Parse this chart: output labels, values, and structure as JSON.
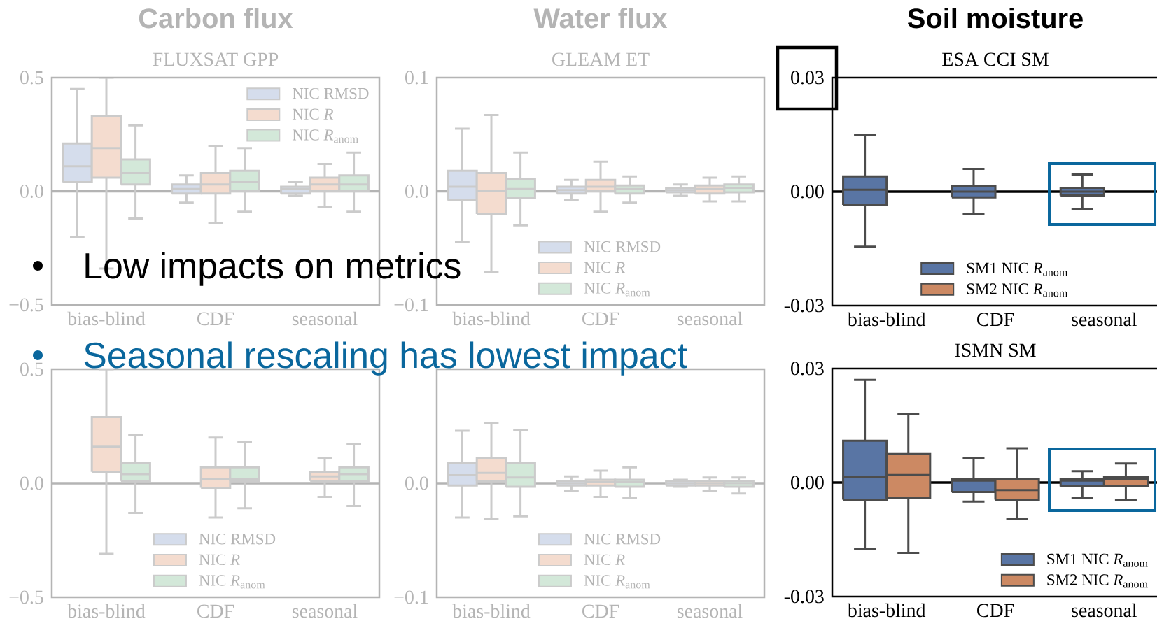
{
  "chart_data": [
    {
      "type": "box",
      "title": "Carbon flux",
      "subtitle": "FLUXSAT GPP",
      "categories": [
        "bias-blind",
        "CDF",
        "seasonal"
      ],
      "ylim": [
        -0.5,
        0.5
      ],
      "yticks": [
        {
          "value": -0.5,
          "label": "−0.5"
        },
        {
          "value": 0,
          "label": "0.0"
        },
        0.5
      ],
      "ref_lines": [
        {
          "axis": "y",
          "value": 0,
          "color": "#b4b4b4"
        }
      ],
      "legend": "top right",
      "series": [
        {
          "name": "NIC RMSD",
          "color": "#d5ddec",
          "boxes": [
            {
              "low": -0.2,
              "q1": 0.04,
              "median": 0.11,
              "q3": 0.21,
              "high": 0.45
            },
            {
              "low": -0.05,
              "q1": -0.01,
              "median": 0.01,
              "q3": 0.03,
              "high": 0.07
            },
            {
              "low": -0.02,
              "q1": -0.01,
              "median": 0.01,
              "q3": 0.02,
              "high": 0.04
            }
          ]
        },
        {
          "name": "NIC *R*",
          "color": "#f4dccf",
          "boxes": [
            {
              "low": -0.34,
              "q1": 0.06,
              "median": 0.19,
              "q3": 0.33,
              "high": 0.5
            },
            {
              "low": -0.14,
              "q1": -0.01,
              "median": 0.03,
              "q3": 0.08,
              "high": 0.2
            },
            {
              "low": -0.07,
              "q1": 0,
              "median": 0.03,
              "q3": 0.06,
              "high": 0.12
            }
          ]
        },
        {
          "name": "NIC *R*$_{anom}$",
          "color": "#d3e8d9",
          "boxes": [
            {
              "low": -0.12,
              "q1": 0.03,
              "median": 0.08,
              "q3": 0.14,
              "high": 0.29
            },
            {
              "low": -0.09,
              "q1": 0,
              "median": 0.04,
              "q3": 0.09,
              "high": 0.19
            },
            {
              "low": -0.09,
              "q1": 0,
              "median": 0.03,
              "q3": 0.07,
              "high": 0.17
            }
          ]
        }
      ]
    },
    {
      "type": "box",
      "title": "Water flux",
      "subtitle": "GLEAM ET",
      "categories": [
        "bias-blind",
        "CDF",
        "seasonal"
      ],
      "ylim": [
        -0.1,
        0.1
      ],
      "yticks": [
        {
          "value": -0.1,
          "label": "−0.1"
        },
        {
          "value": 0,
          "label": "0.0"
        },
        0.1
      ],
      "ref_lines": [
        {
          "axis": "y",
          "value": 0,
          "color": "#b4b4b4"
        }
      ],
      "legend": "bottom",
      "series": [
        {
          "name": "NIC RMSD",
          "color": "#d5ddec",
          "boxes": [
            {
              "low": -0.045,
              "q1": -0.008,
              "median": 0.004,
              "q3": 0.018,
              "high": 0.055
            },
            {
              "low": -0.008,
              "q1": -0.002,
              "median": 0.001,
              "q3": 0.004,
              "high": 0.01
            },
            {
              "low": -0.004,
              "q1": -0.001,
              "median": 0.001,
              "q3": 0.003,
              "high": 0.006
            }
          ]
        },
        {
          "name": "NIC *R*",
          "color": "#f4dccf",
          "boxes": [
            {
              "low": -0.071,
              "q1": -0.02,
              "median": 0,
              "q3": 0.016,
              "high": 0.067
            },
            {
              "low": -0.018,
              "q1": 0,
              "median": 0.004,
              "q3": 0.01,
              "high": 0.026
            },
            {
              "low": -0.009,
              "q1": -0.002,
              "median": 0.002,
              "q3": 0.005,
              "high": 0.012
            }
          ]
        },
        {
          "name": "NIC *R*$_{anom}$",
          "color": "#d3e8d9",
          "boxes": [
            {
              "low": -0.03,
              "q1": -0.006,
              "median": 0.002,
              "q3": 0.011,
              "high": 0.034
            },
            {
              "low": -0.01,
              "q1": -0.002,
              "median": 0.002,
              "q3": 0.005,
              "high": 0.013
            },
            {
              "low": -0.009,
              "q1": -0.001,
              "median": 0.003,
              "q3": 0.006,
              "high": 0.013
            }
          ]
        }
      ]
    },
    {
      "type": "box",
      "title": "Soil moisture",
      "subtitle": "ESA CCI SM",
      "categories": [
        "bias-blind",
        "CDF",
        "seasonal"
      ],
      "ylim": [
        -0.03,
        0.03
      ],
      "yticks": [
        -0.03,
        {
          "value": 0,
          "label": "0.00"
        },
        0.03
      ],
      "ref_lines": [
        {
          "axis": "y",
          "value": 0,
          "color": "#000000"
        }
      ],
      "legend": "bottom",
      "series": [
        {
          "name": "SM1 NIC *R*$_{anom}$",
          "color": "#5975a4",
          "boxes": [
            {
              "low": -0.0145,
              "q1": -0.0035,
              "median": 0.0005,
              "q3": 0.004,
              "high": 0.015
            },
            {
              "low": -0.006,
              "q1": -0.0015,
              "median": 0,
              "q3": 0.0015,
              "high": 0.006
            },
            {
              "low": -0.0045,
              "q1": -0.001,
              "median": 0,
              "q3": 0.001,
              "high": 0.0045
            }
          ]
        },
        {
          "name": "SM2 NIC *R*$_{anom}$",
          "color": "#cc8963",
          "boxes": [
            null,
            null,
            null
          ]
        }
      ]
    },
    {
      "type": "box",
      "categories": [
        "bias-blind",
        "CDF",
        "seasonal"
      ],
      "ylim": [
        -0.5,
        0.5
      ],
      "yticks": [
        {
          "value": -0.5,
          "label": "−0.5"
        },
        {
          "value": 0,
          "label": "0.0"
        },
        0.5
      ],
      "ref_lines": [
        {
          "axis": "y",
          "value": 0,
          "color": "#b4b4b4"
        }
      ],
      "legend": "bottom",
      "series": [
        {
          "name": "NIC RMSD",
          "color": "#d5ddec",
          "boxes": [
            null,
            null,
            null
          ]
        },
        {
          "name": "NIC *R*",
          "color": "#f4dccf",
          "boxes": [
            {
              "low": -0.31,
              "q1": 0.05,
              "median": 0.16,
              "q3": 0.29,
              "high": 0.5
            },
            {
              "low": -0.15,
              "q1": -0.02,
              "median": 0.02,
              "q3": 0.07,
              "high": 0.2
            },
            {
              "low": -0.06,
              "q1": 0.01,
              "median": 0.03,
              "q3": 0.05,
              "high": 0.11
            }
          ]
        },
        {
          "name": "NIC *R*$_{anom}$",
          "color": "#d3e8d9",
          "boxes": [
            {
              "low": -0.13,
              "q1": 0.01,
              "median": 0.04,
              "q3": 0.09,
              "high": 0.21
            },
            {
              "low": -0.11,
              "q1": 0.01,
              "median": 0.02,
              "q3": 0.07,
              "high": 0.18
            },
            {
              "low": -0.1,
              "q1": 0.01,
              "median": 0.04,
              "q3": 0.07,
              "high": 0.17
            }
          ]
        }
      ]
    },
    {
      "type": "box",
      "categories": [
        "bias-blind",
        "CDF",
        "seasonal"
      ],
      "ylim": [
        -0.1,
        0.1
      ],
      "yticks": [
        {
          "value": -0.1,
          "label": "−0.1"
        },
        {
          "value": 0,
          "label": "0.0"
        },
        {
          "value": 0.1,
          "label": null
        }
      ],
      "ref_lines": [
        {
          "axis": "y",
          "value": 0,
          "color": "#b4b4b4"
        }
      ],
      "legend": "bottom",
      "series": [
        {
          "name": "NIC RMSD",
          "color": "#d5ddec",
          "boxes": [
            {
              "low": -0.03,
              "q1": -0.002,
              "median": 0.007,
              "q3": 0.018,
              "high": 0.046
            },
            {
              "low": -0.007,
              "q1": -0.002,
              "median": 0,
              "q3": 0.002,
              "high": 0.006
            },
            {
              "low": -0.003,
              "q1": -0.002,
              "median": 0,
              "q3": 0.002,
              "high": 0.003
            }
          ]
        },
        {
          "name": "NIC *R*",
          "color": "#f4dccf",
          "boxes": [
            {
              "low": -0.031,
              "q1": 0.002,
              "median": 0.009,
              "q3": 0.022,
              "high": 0.053
            },
            {
              "low": -0.012,
              "q1": -0.002,
              "median": 0.001,
              "q3": 0.003,
              "high": 0.011
            },
            {
              "low": -0.007,
              "q1": -0.002,
              "median": 0,
              "q3": 0.002,
              "high": 0.005
            }
          ]
        },
        {
          "name": "NIC *R*$_{anom}$",
          "color": "#d3e8d9",
          "boxes": [
            {
              "low": -0.029,
              "q1": -0.003,
              "median": 0.005,
              "q3": 0.018,
              "high": 0.047
            },
            {
              "low": -0.013,
              "q1": -0.003,
              "median": 0.001,
              "q3": 0.003,
              "high": 0.014
            },
            {
              "low": -0.009,
              "q1": -0.003,
              "median": 0,
              "q3": 0.002,
              "high": 0.005
            }
          ]
        }
      ]
    },
    {
      "type": "box",
      "subtitle": "ISMN SM",
      "categories": [
        "bias-blind",
        "CDF",
        "seasonal"
      ],
      "ylim": [
        -0.03,
        0.03
      ],
      "yticks": [
        -0.03,
        {
          "value": 0,
          "label": "0.00"
        },
        0.03
      ],
      "ref_lines": [
        {
          "axis": "y",
          "value": 0,
          "color": "#000000"
        }
      ],
      "legend": "bottom right",
      "series": [
        {
          "name": "SM1 NIC *R*$_{anom}$",
          "color": "#5975a4",
          "boxes": [
            {
              "low": -0.0175,
              "q1": -0.0045,
              "median": 0.0015,
              "q3": 0.011,
              "high": 0.027
            },
            {
              "low": -0.005,
              "q1": -0.0025,
              "median": 0.0005,
              "q3": 0.001,
              "high": 0.0065
            },
            {
              "low": -0.004,
              "q1": -0.001,
              "median": 0.0005,
              "q3": 0.001,
              "high": 0.003
            }
          ]
        },
        {
          "name": "SM2 NIC *R*$_{anom}$",
          "color": "#cc8963",
          "boxes": [
            {
              "low": -0.0185,
              "q1": -0.004,
              "median": 0.002,
              "q3": 0.0075,
              "high": 0.018
            },
            {
              "low": -0.0095,
              "q1": -0.0045,
              "median": -0.002,
              "q3": 0.001,
              "high": 0.009
            },
            {
              "low": -0.0045,
              "q1": -0.001,
              "median": 0.001,
              "q3": 0.0015,
              "high": 0.005
            }
          ]
        }
      ]
    },
    {
      "type": "other",
      "annotations": [
        "Low impacts on metrics",
        "Seasonal rescaling has lowest impact"
      ],
      "colors": [
        "#000000",
        "#0a679d"
      ]
    }
  ]
}
